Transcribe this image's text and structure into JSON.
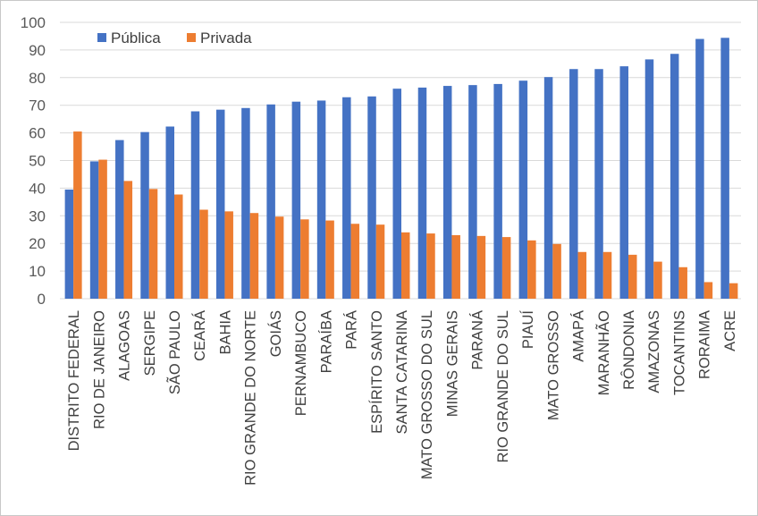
{
  "chart_data": {
    "type": "bar",
    "title": "",
    "xlabel": "",
    "ylabel": "",
    "ylim": [
      0,
      100
    ],
    "yticks": [
      "0",
      "10",
      "20",
      "30",
      "40",
      "50",
      "60",
      "70",
      "80",
      "90",
      "100"
    ],
    "legend_position": "top-left",
    "categories": [
      "DISTRITO FEDERAL",
      "RIO DE JANEIRO",
      "ALAGOAS",
      "SERGIPE",
      "SÃO PAULO",
      "CEARÁ",
      "BAHIA",
      "RIO GRANDE DO NORTE",
      "GOIÁS",
      "PERNAMBUCO",
      "PARAÍBA",
      "PARÁ",
      "ESPÍRITO SANTO",
      "SANTA CATARINA",
      "MATO GROSSO DO SUL",
      "MINAS GERAIS",
      "PARANÁ",
      "RIO GRANDE DO SUL",
      "PIAUÍ",
      "MATO GROSSO",
      "AMAPÁ",
      "MARANHÃO",
      "RÔNDONIA",
      "AMAZONAS",
      "TOCANTINS",
      "RORAIMA",
      "ACRE"
    ],
    "series": [
      {
        "name": "Pública",
        "color": "#4472c4",
        "values": [
          39.5,
          49.7,
          57.4,
          60.3,
          62.3,
          67.8,
          68.4,
          69.0,
          70.3,
          71.3,
          71.7,
          72.9,
          73.2,
          76.0,
          76.4,
          77.0,
          77.3,
          77.7,
          78.9,
          80.2,
          83.1,
          83.1,
          84.1,
          86.6,
          88.6,
          94.0,
          94.4
        ]
      },
      {
        "name": "Privada",
        "color": "#ed7d31",
        "values": [
          60.5,
          50.3,
          42.6,
          39.7,
          37.7,
          32.2,
          31.6,
          31.0,
          29.7,
          28.7,
          28.3,
          27.1,
          26.8,
          24.0,
          23.6,
          23.0,
          22.7,
          22.3,
          21.1,
          19.8,
          16.9,
          16.9,
          15.9,
          13.4,
          11.4,
          6.0,
          5.6
        ]
      }
    ]
  }
}
